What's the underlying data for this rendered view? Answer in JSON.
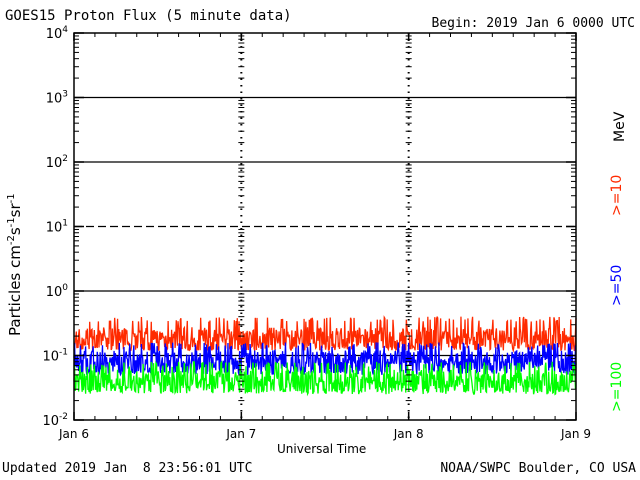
{
  "header": {
    "title": "GOES15 Proton Flux (5 minute data)",
    "begin": "Begin: 2019 Jan 6 0000 UTC"
  },
  "footer": {
    "updated": "Updated 2019 Jan  8 23:56:01 UTC",
    "credit": "NOAA/SWPC Boulder, CO USA"
  },
  "chart_data": {
    "type": "line",
    "title": "GOES15 Proton Flux (5 minute data)",
    "xlabel": "Universal Time",
    "ylabel": "Particles cm-2s-1sr-1",
    "yscale": "log",
    "ylim": [
      0.01,
      10000
    ],
    "y_tick_labels": [
      "10-2",
      "10-1",
      "100",
      "101",
      "102",
      "103",
      "104"
    ],
    "x_tick_labels": [
      "Jan 6",
      "Jan 7",
      "Jan 8",
      "Jan 9"
    ],
    "xlim_days": [
      0,
      3
    ],
    "legend_unit": "MeV",
    "series": [
      {
        "name": ">=10",
        "color": "#ff2a00",
        "approx_range": [
          0.12,
          0.4
        ],
        "typical": 0.18
      },
      {
        "name": ">=50",
        "color": "#0000ff",
        "approx_range": [
          0.05,
          0.16
        ],
        "typical": 0.08
      },
      {
        "name": ">=100",
        "color": "#00ff00",
        "approx_range": [
          0.025,
          0.08
        ],
        "typical": 0.04
      }
    ]
  }
}
